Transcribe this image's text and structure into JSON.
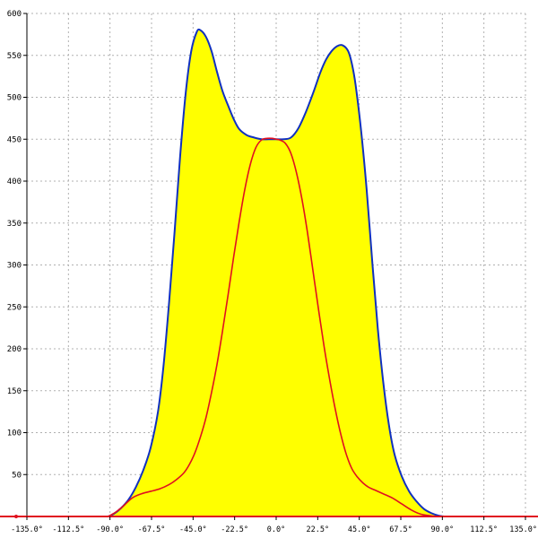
{
  "chart_data": {
    "type": "area",
    "xlim": [
      -135,
      135
    ],
    "ylim": [
      0,
      600
    ],
    "x_ticks": [
      -135,
      -112.5,
      -90,
      -67.5,
      -45,
      -22.5,
      0,
      22.5,
      45,
      67.5,
      90,
      112.5,
      135
    ],
    "x_tick_labels": [
      "-135.0°",
      "-112.5°",
      "-90.0°",
      "-67.5°",
      "-45.0°",
      "-22.5°",
      "0.0°",
      "22.5°",
      "45.0°",
      "67.5°",
      "90.0°",
      "112.5°",
      "135.0°"
    ],
    "y_ticks": [
      50,
      100,
      150,
      200,
      250,
      300,
      350,
      400,
      450,
      500,
      550,
      600
    ],
    "y_tick_labels": [
      "50",
      "100",
      "150",
      "200",
      "250",
      "300",
      "350",
      "400",
      "450",
      "500",
      "550",
      "600"
    ],
    "grid": true,
    "colors": {
      "fill": "#ffff00",
      "outer_line": "#1030c0",
      "inner_line": "#e01020",
      "baseline": "#e01020"
    },
    "series": [
      {
        "x": [
          -91,
          -88,
          -84,
          -80,
          -76,
          -72,
          -68,
          -64,
          -61,
          -58,
          -55,
          -52,
          -49,
          -46,
          -43,
          -41,
          -38,
          -35,
          -32,
          -29,
          -26,
          -23,
          -20,
          -16,
          -12,
          -8,
          -4,
          0,
          4,
          8,
          12,
          16,
          20,
          24,
          27,
          30,
          33,
          36,
          39,
          41,
          43,
          46,
          49,
          52,
          55,
          58,
          61,
          64,
          68,
          72,
          76,
          80,
          84,
          88,
          91
        ],
        "values": [
          0,
          3,
          10,
          20,
          35,
          55,
          82,
          125,
          180,
          255,
          340,
          430,
          505,
          555,
          578,
          580,
          572,
          555,
          530,
          507,
          490,
          474,
          462,
          455,
          452,
          450,
          450,
          450,
          450,
          452,
          463,
          482,
          505,
          530,
          545,
          555,
          561,
          562,
          555,
          540,
          515,
          460,
          390,
          305,
          225,
          160,
          110,
          75,
          48,
          30,
          18,
          9,
          4,
          1,
          0
        ]
      },
      {
        "x": [
          -91,
          -87,
          -83,
          -78,
          -73,
          -68,
          -63,
          -58,
          -54,
          -50,
          -47,
          -44,
          -41,
          -38,
          -35,
          -32,
          -29,
          -26,
          -23,
          -20,
          -17,
          -14,
          -11,
          -8,
          -5,
          -2,
          0,
          2,
          5,
          8,
          11,
          14,
          17,
          20,
          23,
          26,
          29,
          32,
          35,
          38,
          41,
          44,
          47,
          50,
          54,
          58,
          63,
          68,
          73,
          78,
          83,
          87,
          91
        ],
        "values": [
          0,
          5,
          12,
          22,
          27,
          30,
          33,
          38,
          44,
          52,
          62,
          76,
          95,
          118,
          148,
          182,
          222,
          265,
          310,
          352,
          390,
          420,
          440,
          449,
          451,
          451,
          450,
          449,
          445,
          433,
          410,
          378,
          338,
          292,
          246,
          202,
          163,
          128,
          98,
          74,
          57,
          47,
          40,
          35,
          31,
          27,
          22,
          15,
          8,
          3,
          1,
          0,
          0
        ]
      }
    ]
  }
}
